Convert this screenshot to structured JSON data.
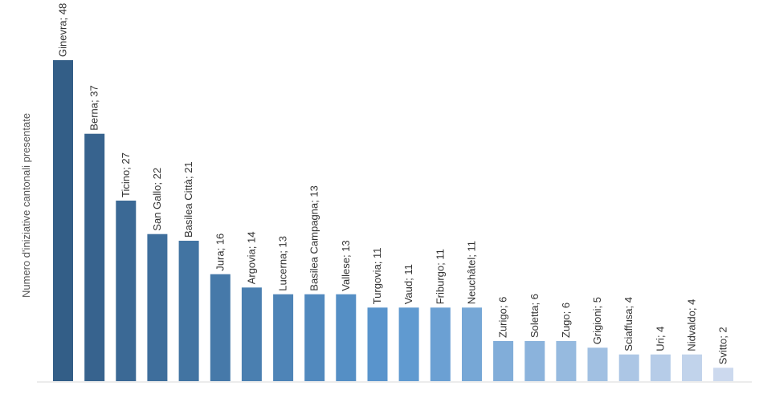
{
  "chart_data": {
    "type": "bar",
    "title": "",
    "xlabel": "",
    "ylabel": "Numero d'iniziative cantonali presentate",
    "ylim": [
      0,
      48
    ],
    "grid": false,
    "legend": "none",
    "categories": [
      "Ginevra",
      "Berna",
      "Ticino",
      "San Gallo",
      "Basilea Città",
      "Jura",
      "Argovia",
      "Lucerna",
      "Basilea Campagna",
      "Vallese",
      "Turgovia",
      "Vaud",
      "Friburgo",
      "Neuchâtel",
      "Zurigo",
      "Soletta",
      "Zugo",
      "Grigioni",
      "Sciaffusa",
      "Uri",
      "Nidvaldo",
      "Svitto"
    ],
    "values": [
      48,
      37,
      27,
      22,
      21,
      16,
      14,
      13,
      13,
      13,
      11,
      11,
      11,
      11,
      6,
      6,
      6,
      5,
      4,
      4,
      4,
      2
    ],
    "labels": [
      "Ginevra; 48",
      "Berna; 37",
      "Ticino; 27",
      "San Gallo; 22",
      "Basilea Città; 21",
      "Jura; 16",
      "Argovia; 14",
      "Lucerna; 13",
      "Basilea Campagna; 13",
      "Vallese; 13",
      "Turgovia; 11",
      "Vaud; 11",
      "Friburgo; 11",
      "Neuchâtel; 11",
      "Zurigo; 6",
      "Soletta; 6",
      "Zugo; 6",
      "Grigioni; 5",
      "Sciaffusa; 4",
      "Uri; 4",
      "Nidvaldo; 4",
      "Svitto; 2"
    ],
    "colors": {
      "gradient_start": "#335e87",
      "gradient_mid": "#5b97cf",
      "gradient_end": "#ccd9ee",
      "axis_line": "#d9d9d9"
    }
  }
}
